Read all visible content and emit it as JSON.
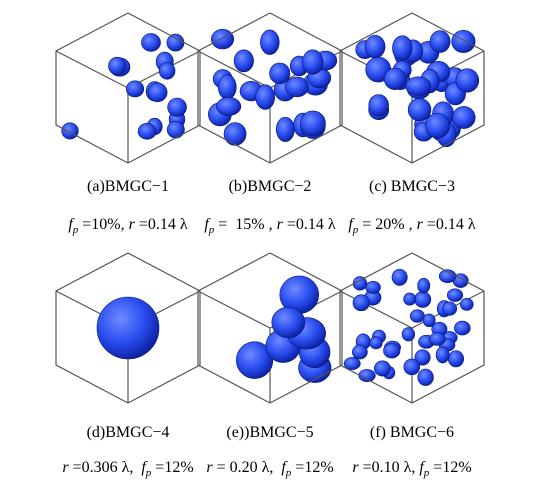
{
  "panels": [
    {
      "label": "(a)BMGC−1",
      "params": [
        {
          "text": "f",
          "style": "italic"
        },
        {
          "text": "p",
          "style": "sub"
        },
        {
          "text": " =10%, ",
          "style": "plain"
        },
        {
          "text": "r",
          "style": "italic"
        },
        {
          "text": " =0.14 λ",
          "style": "plain"
        }
      ]
    },
    {
      "label": "(b)BMGC−2",
      "params": [
        {
          "text": "f",
          "style": "italic"
        },
        {
          "text": "p",
          "style": "sub"
        },
        {
          "text": " =  15% , ",
          "style": "plain"
        },
        {
          "text": "r",
          "style": "italic"
        },
        {
          "text": " =0.14 λ",
          "style": "plain"
        }
      ]
    },
    {
      "label": "(c) BMGC−3",
      "params": [
        {
          "text": "f",
          "style": "italic"
        },
        {
          "text": "p",
          "style": "sub"
        },
        {
          "text": " = 20% , ",
          "style": "plain"
        },
        {
          "text": "r",
          "style": "italic"
        },
        {
          "text": " =0.14 λ",
          "style": "plain"
        }
      ]
    },
    {
      "label": "(d)BMGC−4",
      "params": [
        {
          "text": "r",
          "style": "italic"
        },
        {
          "text": " =0.306 λ,  ",
          "style": "plain"
        },
        {
          "text": "f",
          "style": "italic"
        },
        {
          "text": "p",
          "style": "sub"
        },
        {
          "text": " =12%",
          "style": "plain"
        }
      ]
    },
    {
      "label": "(e))BMGC−5",
      "params": [
        {
          "text": "r",
          "style": "italic"
        },
        {
          "text": " = 0.20 λ,  ",
          "style": "plain"
        },
        {
          "text": "f",
          "style": "italic"
        },
        {
          "text": "p",
          "style": "sub"
        },
        {
          "text": " =12%",
          "style": "plain"
        }
      ]
    },
    {
      "label": "(f) BMGC−6",
      "params": [
        {
          "text": "r",
          "style": "italic"
        },
        {
          "text": " =0.10 λ, ",
          "style": "plain"
        },
        {
          "text": "f",
          "style": "italic"
        },
        {
          "text": "p",
          "style": "sub"
        },
        {
          "text": " =12%",
          "style": "plain"
        }
      ]
    }
  ]
}
